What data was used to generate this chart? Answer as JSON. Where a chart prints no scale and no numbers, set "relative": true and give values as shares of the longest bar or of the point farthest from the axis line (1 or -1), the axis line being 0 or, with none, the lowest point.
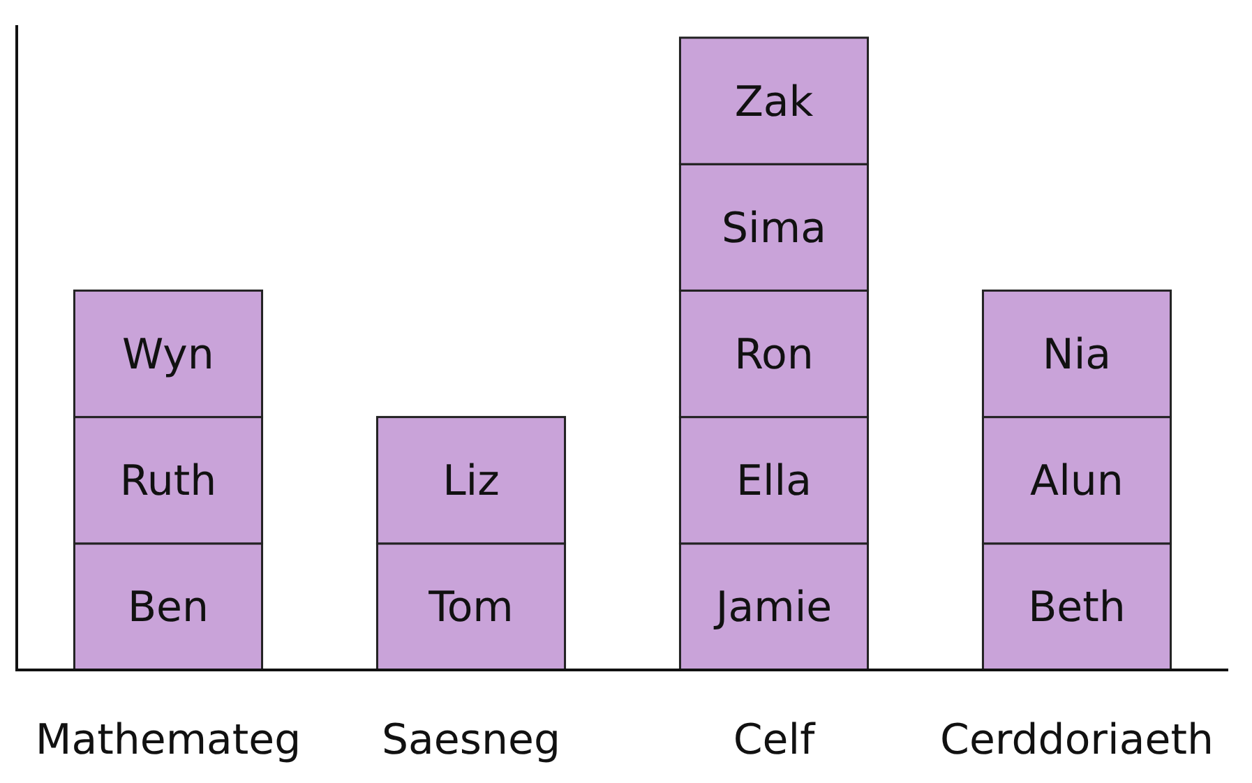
{
  "chart_data": {
    "type": "bar",
    "stacked": true,
    "relative": true,
    "categories": [
      "Mathemateg",
      "Saesneg",
      "Celf",
      "Cerddoriaeth"
    ],
    "series": [
      {
        "color": "#c9a3d9",
        "values": [
          0.2,
          0.2,
          0.2,
          0.2
        ]
      },
      {
        "color": "#c9a3d9",
        "values": [
          0.2,
          0.2,
          0.2,
          0.2
        ]
      },
      {
        "color": "#c9a3d9",
        "values": [
          0.2,
          null,
          0.2,
          0.2
        ]
      },
      {
        "color": "#c9a3d9",
        "values": [
          null,
          null,
          0.2,
          null
        ]
      },
      {
        "color": "#c9a3d9",
        "values": [
          null,
          null,
          0.2,
          null
        ]
      }
    ],
    "annotations": [
      {
        "text": "Ben",
        "x": "Mathemateg",
        "y": 0.2
      },
      {
        "text": "Ruth",
        "x": "Mathemateg",
        "y": 0.4
      },
      {
        "text": "Wyn",
        "x": "Mathemateg",
        "y": 0.6
      },
      {
        "text": "Tom",
        "x": "Saesneg",
        "y": 0.2
      },
      {
        "text": "Liz",
        "x": "Saesneg",
        "y": 0.4
      },
      {
        "text": "Jamie",
        "x": "Celf",
        "y": 0.2
      },
      {
        "text": "Ella",
        "x": "Celf",
        "y": 0.4
      },
      {
        "text": "Ron",
        "x": "Celf",
        "y": 0.6
      },
      {
        "text": "Sima",
        "x": "Celf",
        "y": 0.8
      },
      {
        "text": "Zak",
        "x": "Celf",
        "y": 1
      },
      {
        "text": "Beth",
        "x": "Cerddoriaeth",
        "y": 0.2
      },
      {
        "text": "Alun",
        "x": "Cerddoriaeth",
        "y": 0.4
      },
      {
        "text": "Nia",
        "x": "Cerddoriaeth",
        "y": 0.6
      }
    ]
  }
}
